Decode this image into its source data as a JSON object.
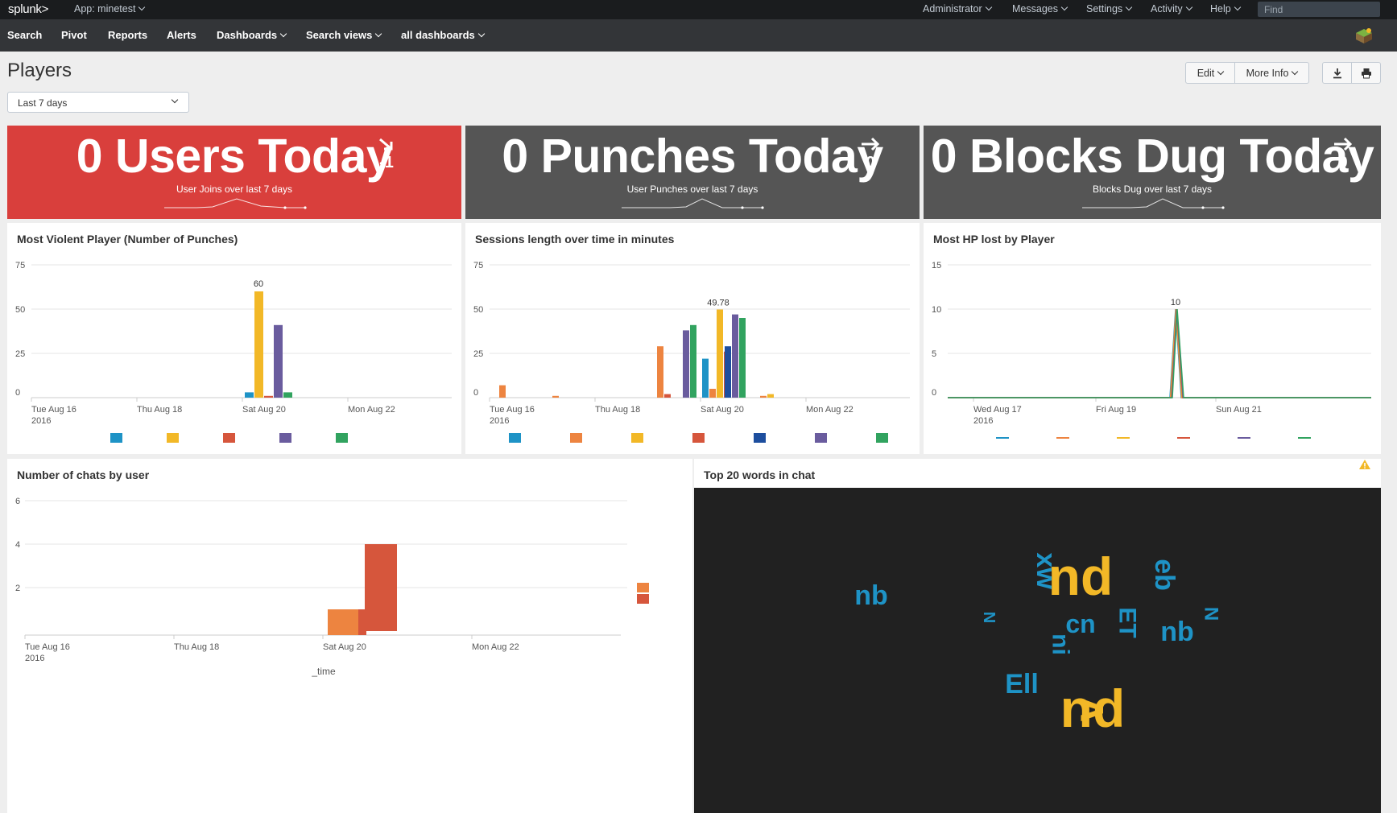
{
  "topbar": {
    "logo": "splunk",
    "logo_mark": ">",
    "app": "App: minetest",
    "menus": [
      "Administrator",
      "Messages",
      "Settings",
      "Activity",
      "Help"
    ],
    "find_placeholder": "Find"
  },
  "navbar": {
    "items": [
      "Search",
      "Pivot",
      "Reports",
      "Alerts",
      "Dashboards",
      "Search views",
      "all dashboards"
    ]
  },
  "page": {
    "title": "Players",
    "time_range": "Last 7 days",
    "edit": "Edit",
    "more_info": "More Info"
  },
  "icons": [
    "caret-down-icon",
    "download-icon",
    "print-icon",
    "app-icon",
    "warning-icon",
    "trend-arrow-icon"
  ],
  "colors": {
    "red_panel": "#d93f3c",
    "grey_panel": "#555555",
    "series": [
      "#1e93c6",
      "#f2b827",
      "#d6563c",
      "#6a5c9e",
      "#31a35f",
      "#ed8440"
    ],
    "wordcloud_bg": "#212121"
  },
  "single_values": [
    {
      "value": "0 Users Today",
      "trend": "-1",
      "under": "User Joins over last 7 days",
      "color": "#d93f3c"
    },
    {
      "value": "0 Punches Today",
      "trend": "0",
      "under": "User Punches over last 7 days",
      "color": "#555555"
    },
    {
      "value": "0 Blocks Dug Today",
      "trend": "0",
      "under": "Blocks Dug over last 7 days",
      "color": "#555555"
    }
  ],
  "panels": {
    "violent": "Most Violent Player (Number of Punches)",
    "sessions": "Sessions length over time in minutes",
    "hp": "Most HP lost by Player",
    "chats": "Number of chats by user",
    "words": "Top 20 words in chat"
  },
  "chart_data": [
    {
      "type": "bar",
      "title": "Most Violent Player (Number of Punches)",
      "ylim": [
        0,
        75
      ],
      "yticks": [
        "75",
        "50",
        "25",
        "0"
      ],
      "xticks": [
        "Tue Aug 16\n2016",
        "Thu Aug 18",
        "Sat Aug 20",
        "Mon Aug 22"
      ],
      "x": [
        "Sat Aug 20"
      ],
      "series": [
        {
          "values": [
            3
          ]
        },
        {
          "values": [
            60
          ]
        },
        {
          "values": [
            1
          ]
        },
        {
          "values": [
            41
          ]
        },
        {
          "values": [
            3
          ]
        }
      ],
      "data_labels": [
        "60"
      ],
      "legend": "bottom"
    },
    {
      "type": "bar",
      "title": "Sessions length over time in minutes",
      "ylim": [
        0,
        75
      ],
      "yticks": [
        "75",
        "50",
        "25",
        "0"
      ],
      "xticks": [
        "Tue Aug 16\n2016",
        "Thu Aug 18",
        "Sat Aug 20",
        "Mon Aug 22"
      ],
      "x": [
        "Tue Aug 16",
        "Wed Aug 17 am",
        "Fri Aug 19 pm",
        "Sat Aug 20 early",
        "Sat Aug 20 am",
        "Sat Aug 20 pm",
        "Sun Aug 21"
      ],
      "series": [
        {
          "values": [
            0,
            0,
            0,
            0,
            22,
            0,
            0
          ]
        },
        {
          "values": [
            7,
            1,
            29,
            0,
            5,
            0,
            1
          ]
        },
        {
          "values": [
            0,
            0,
            0,
            0,
            49.78,
            0,
            2
          ]
        },
        {
          "values": [
            0,
            0,
            2,
            0,
            26,
            0,
            0
          ]
        },
        {
          "values": [
            0,
            0,
            0,
            0,
            0,
            29,
            0
          ]
        },
        {
          "values": [
            0,
            0,
            0,
            38,
            0,
            47,
            0
          ]
        },
        {
          "values": [
            0,
            0,
            0,
            41,
            0,
            45,
            0
          ]
        }
      ],
      "data_labels": [
        "49.78"
      ],
      "legend": "bottom"
    },
    {
      "type": "line",
      "title": "Most HP lost by Player",
      "ylim": [
        0,
        15
      ],
      "yticks": [
        "15",
        "10",
        "5",
        "0"
      ],
      "xticks": [
        "Wed Aug 17\n2016",
        "Fri Aug 19",
        "Sun Aug 21"
      ],
      "x": [
        "Aug 17",
        "Aug 19",
        "Aug 20 spike",
        "Aug 21",
        "Aug 22"
      ],
      "series": [
        {
          "values": [
            0,
            0,
            10,
            0,
            0
          ]
        },
        {
          "values": [
            0,
            0,
            10,
            0,
            0
          ]
        },
        {
          "values": [
            0,
            0,
            10,
            0,
            0
          ]
        },
        {
          "values": [
            0,
            0,
            10,
            0,
            0
          ]
        },
        {
          "values": [
            0,
            0,
            10,
            0,
            0
          ]
        },
        {
          "values": [
            0,
            0,
            10,
            0,
            0
          ]
        }
      ],
      "data_labels": [
        "10"
      ],
      "legend": "bottom"
    },
    {
      "type": "area",
      "title": "Number of chats by user",
      "ylim": [
        0,
        6
      ],
      "yticks": [
        "6",
        "4",
        "2"
      ],
      "xticks": [
        "Tue Aug 16\n2016",
        "Thu Aug 18",
        "Sat Aug 20",
        "Mon Aug 22"
      ],
      "xlabel": "_time",
      "series": [
        {
          "values": [
            1,
            1,
            1,
            1
          ]
        },
        {
          "values": [
            0,
            0,
            0,
            4
          ]
        }
      ],
      "legend": "right"
    }
  ],
  "wordcloud": {
    "title": "Top 20 words in chat",
    "words": [
      {
        "text": "nd",
        "color": "#f2b827"
      },
      {
        "text": "nd",
        "color": "#f2b827"
      },
      {
        "text": "v",
        "color": "#f2b827"
      },
      {
        "text": "nb",
        "color": "#1e93c6"
      },
      {
        "text": "nb",
        "color": "#1e93c6"
      },
      {
        "text": "cn",
        "color": "#1e93c6"
      },
      {
        "text": "ET",
        "color": "#1e93c6"
      },
      {
        "text": "Ell",
        "color": "#1e93c6"
      },
      {
        "text": "xw",
        "color": "#1e93c6"
      },
      {
        "text": "eb",
        "color": "#1e93c6"
      },
      {
        "text": "ni",
        "color": "#1e93c6"
      },
      {
        "text": "N",
        "color": "#1e93c6"
      },
      {
        "text": "N",
        "color": "#1e93c6"
      }
    ]
  }
}
